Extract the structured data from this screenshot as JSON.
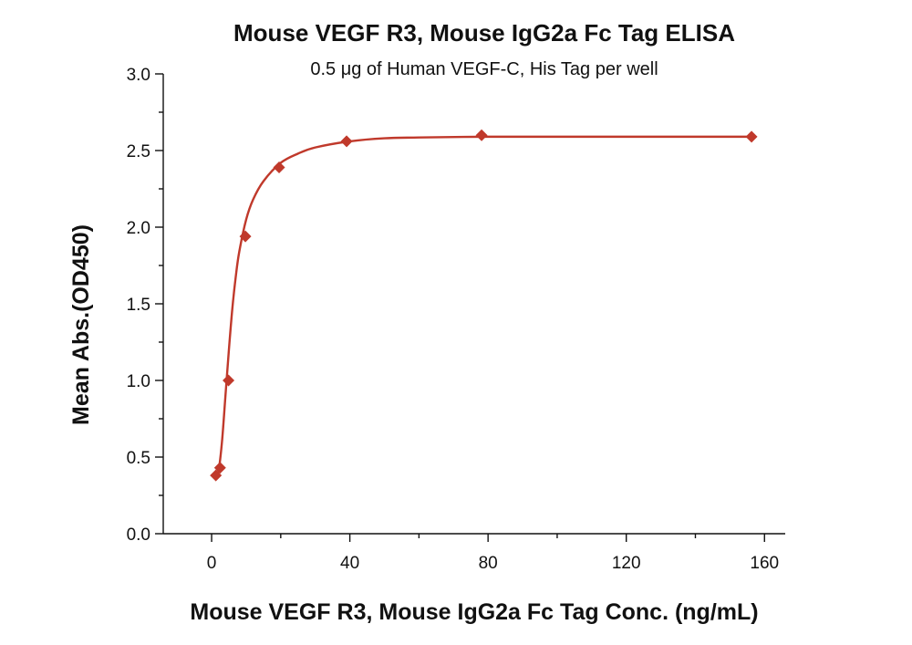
{
  "chart_data": {
    "type": "scatter",
    "title": "Mouse VEGF R3, Mouse IgG2a Fc Tag ELISA",
    "subtitle": "0.5 μg of Human VEGF-C, His Tag per well",
    "xlabel": "Mouse VEGF R3, Mouse IgG2a Fc Tag Conc. (ng/mL)",
    "ylabel": "Mean Abs.(OD450)",
    "xlim": [
      -14,
      166
    ],
    "ylim": [
      0,
      3.0
    ],
    "x_ticks": [
      0,
      40,
      80,
      120,
      160
    ],
    "x_tick_labels": [
      "0",
      "40",
      "80",
      "120",
      "160"
    ],
    "x_minor_ticks": [
      20,
      60,
      100,
      140
    ],
    "y_ticks": [
      0,
      0.5,
      1.0,
      1.5,
      2.0,
      2.5,
      3.0
    ],
    "y_tick_labels": [
      "0.0",
      "0.5",
      "1.0",
      "1.5",
      "2.0",
      "2.5",
      "3.0"
    ],
    "y_minor_ticks": [
      0.25,
      0.75,
      1.25,
      1.75,
      2.25,
      2.75
    ],
    "grid": false,
    "legend": "none",
    "series": [
      {
        "color": "#c0392b",
        "marker": "diamond",
        "points": [
          {
            "x": 1.22,
            "y": 0.38
          },
          {
            "x": 2.44,
            "y": 0.43
          },
          {
            "x": 4.88,
            "y": 1.0
          },
          {
            "x": 9.77,
            "y": 1.94
          },
          {
            "x": 19.53,
            "y": 2.39
          },
          {
            "x": 39.06,
            "y": 2.56
          },
          {
            "x": 78.13,
            "y": 2.6
          },
          {
            "x": 156.25,
            "y": 2.59
          }
        ],
        "fit_curve": {
          "color": "#c0392b",
          "x": [
            1.0,
            2.0,
            3.0,
            4.0,
            5.0,
            6.0,
            7.0,
            8.0,
            10.0,
            12.0,
            15.0,
            20.0,
            25.0,
            30.0,
            40.0,
            50.0,
            60.0,
            80.0,
            100.0,
            120.0,
            140.0,
            156.25
          ],
          "y": [
            0.36,
            0.41,
            0.6,
            0.9,
            1.2,
            1.47,
            1.68,
            1.84,
            2.05,
            2.18,
            2.3,
            2.42,
            2.48,
            2.52,
            2.56,
            2.58,
            2.585,
            2.59,
            2.59,
            2.59,
            2.59,
            2.59
          ]
        }
      }
    ]
  }
}
